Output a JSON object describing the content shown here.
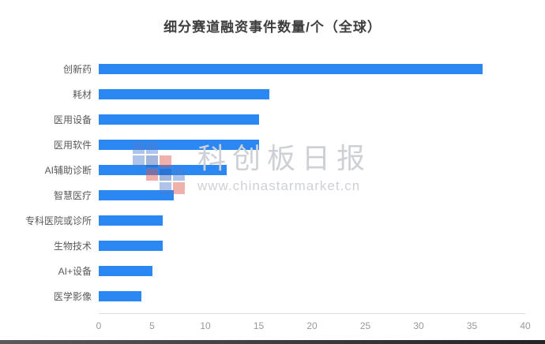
{
  "title": "细分赛道融资事件数量/个（全球）",
  "watermark": {
    "name": "科创板日报",
    "url": "www.chinastarmarket.cn"
  },
  "colors": {
    "bar": "#2b87f2",
    "axis_line": "#dcdcdc",
    "tick_text": "#999999",
    "label_text": "#595959",
    "title_text": "#3d3d3d",
    "watermark_text": "#cdd1d6"
  },
  "chart_data": {
    "type": "bar",
    "orientation": "horizontal",
    "title": "细分赛道融资事件数量/个（全球）",
    "categories": [
      "创新药",
      "耗材",
      "医用设备",
      "医用软件",
      "AI辅助诊断",
      "智慧医疗",
      "专科医院或诊所",
      "生物技术",
      "AI+设备",
      "医学影像"
    ],
    "values": [
      36,
      16,
      15,
      15,
      12,
      7,
      6,
      6,
      5,
      4
    ],
    "xlabel": "",
    "ylabel": "",
    "xlim": [
      0,
      40
    ],
    "xticks": [
      0,
      5,
      10,
      15,
      20,
      25,
      30,
      35,
      40
    ],
    "grid": false,
    "legend": false
  }
}
